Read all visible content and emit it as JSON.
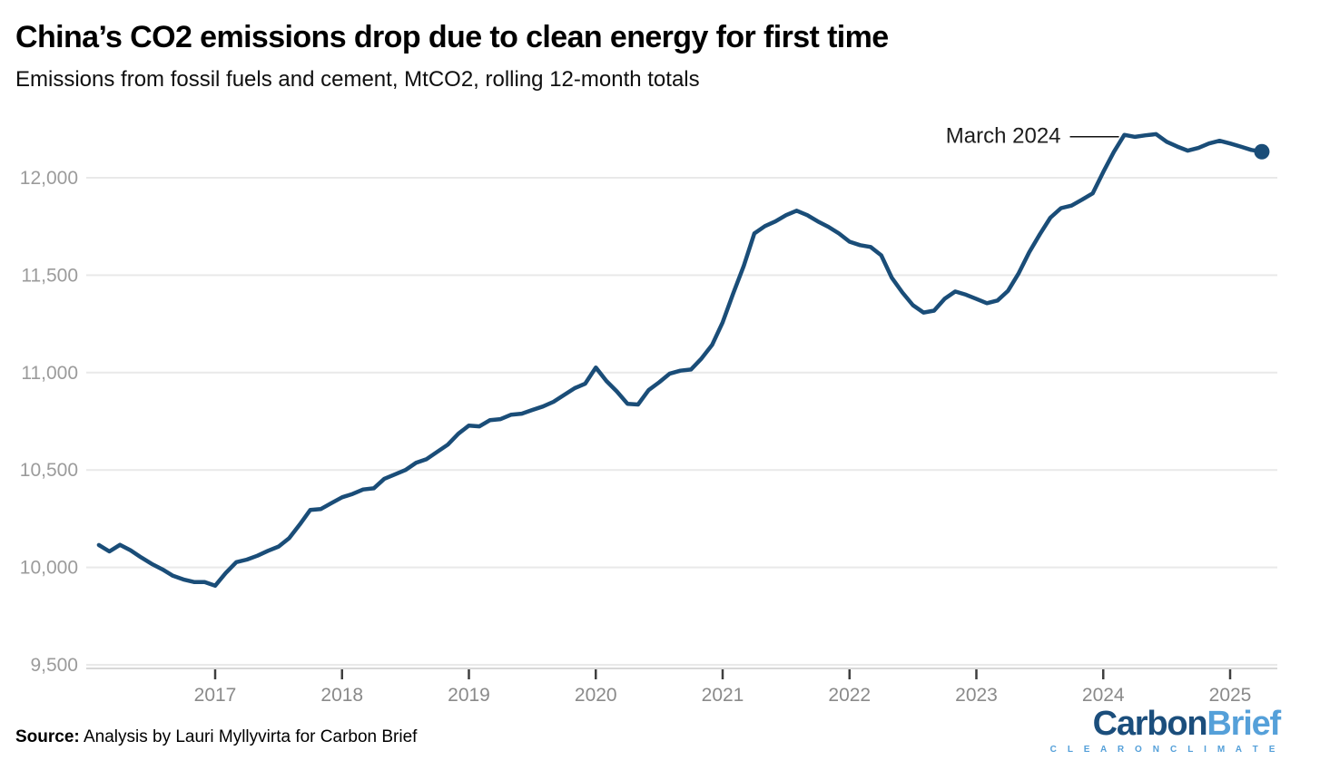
{
  "chart_data": {
    "type": "line",
    "title": "China’s CO2 emissions drop due to clean energy for first time",
    "subtitle": "Emissions from fossil fuels and cement, MtCO2, rolling 12-month totals",
    "unit": "MtCO2",
    "grid": "horizontal",
    "legend_position": "none",
    "ylim": [
      9500,
      12260
    ],
    "y_ticks": [
      9500,
      10000,
      10500,
      11000,
      11500,
      12000
    ],
    "x_ticks": [
      "2017",
      "2018",
      "2019",
      "2020",
      "2021",
      "2022",
      "2023",
      "2024",
      "2025"
    ],
    "annotation": {
      "label": "March 2024",
      "month": "2024-03",
      "value": 12220
    },
    "end_marker": {
      "month": "2025-04",
      "value": 12134
    },
    "months": [
      "2016-02",
      "2016-03",
      "2016-04",
      "2016-05",
      "2016-06",
      "2016-07",
      "2016-08",
      "2016-09",
      "2016-10",
      "2016-11",
      "2016-12",
      "2017-01",
      "2017-02",
      "2017-03",
      "2017-04",
      "2017-05",
      "2017-06",
      "2017-07",
      "2017-08",
      "2017-09",
      "2017-10",
      "2017-11",
      "2017-12",
      "2018-01",
      "2018-02",
      "2018-03",
      "2018-04",
      "2018-05",
      "2018-06",
      "2018-07",
      "2018-08",
      "2018-09",
      "2018-10",
      "2018-11",
      "2018-12",
      "2019-01",
      "2019-02",
      "2019-03",
      "2019-04",
      "2019-05",
      "2019-06",
      "2019-07",
      "2019-08",
      "2019-09",
      "2019-10",
      "2019-11",
      "2019-12",
      "2020-01",
      "2020-02",
      "2020-03",
      "2020-04",
      "2020-05",
      "2020-06",
      "2020-07",
      "2020-08",
      "2020-09",
      "2020-10",
      "2020-11",
      "2020-12",
      "2021-01",
      "2021-02",
      "2021-03",
      "2021-04",
      "2021-05",
      "2021-06",
      "2021-07",
      "2021-08",
      "2021-09",
      "2021-10",
      "2021-11",
      "2021-12",
      "2022-01",
      "2022-02",
      "2022-03",
      "2022-04",
      "2022-05",
      "2022-06",
      "2022-07",
      "2022-08",
      "2022-09",
      "2022-10",
      "2022-11",
      "2022-12",
      "2023-01",
      "2023-02",
      "2023-03",
      "2023-04",
      "2023-05",
      "2023-06",
      "2023-07",
      "2023-08",
      "2023-09",
      "2023-10",
      "2023-11",
      "2023-12",
      "2024-01",
      "2024-02",
      "2024-03",
      "2024-04",
      "2024-05",
      "2024-06",
      "2024-07",
      "2024-08",
      "2024-09",
      "2024-10",
      "2024-11",
      "2024-12",
      "2025-01",
      "2025-02",
      "2025-03",
      "2025-04"
    ],
    "values": [
      10115,
      10082,
      10116,
      10088,
      10051,
      10018,
      9990,
      9957,
      9938,
      9925,
      9925,
      9906,
      9971,
      10027,
      10040,
      10060,
      10085,
      10107,
      10150,
      10220,
      10295,
      10300,
      10330,
      10360,
      10377,
      10400,
      10406,
      10455,
      10477,
      10500,
      10537,
      10556,
      10593,
      10630,
      10686,
      10728,
      10724,
      10756,
      10761,
      10784,
      10789,
      10808,
      10826,
      10850,
      10885,
      10920,
      10943,
      11026,
      10957,
      10903,
      10840,
      10836,
      10910,
      10950,
      10995,
      11010,
      11016,
      11072,
      11142,
      11258,
      11406,
      11548,
      11714,
      11752,
      11776,
      11808,
      11831,
      11808,
      11776,
      11748,
      11714,
      11672,
      11654,
      11645,
      11602,
      11487,
      11411,
      11346,
      11308,
      11318,
      11379,
      11416,
      11400,
      11378,
      11356,
      11370,
      11420,
      11510,
      11618,
      11710,
      11795,
      11844,
      11857,
      11888,
      11920,
      12030,
      12132,
      12220,
      12210,
      12218,
      12224,
      12185,
      12160,
      12139,
      12153,
      12176,
      12190,
      12176,
      12160,
      12143,
      12134
    ]
  },
  "footer": {
    "source_label": "Source:",
    "source_text": "Analysis by Lauri Myllyvirta for Carbon Brief"
  },
  "logo": {
    "word_dark": "Carbon",
    "word_light": "Brief",
    "tagline": "C L E A R   O N   C L I M A T E"
  },
  "colors": {
    "line": "#1a4d78",
    "grid": "#e9e9e9",
    "axis_line": "#d8d8d8",
    "tick_mark": "#3f3f3f",
    "y_label": "#9b9b9b",
    "x_label": "#8a8a8a",
    "annotation_text": "#1d1d1d",
    "annotation_line": "#111111",
    "logo_dark": "#1b4e7c",
    "logo_light": "#55a0d9"
  }
}
